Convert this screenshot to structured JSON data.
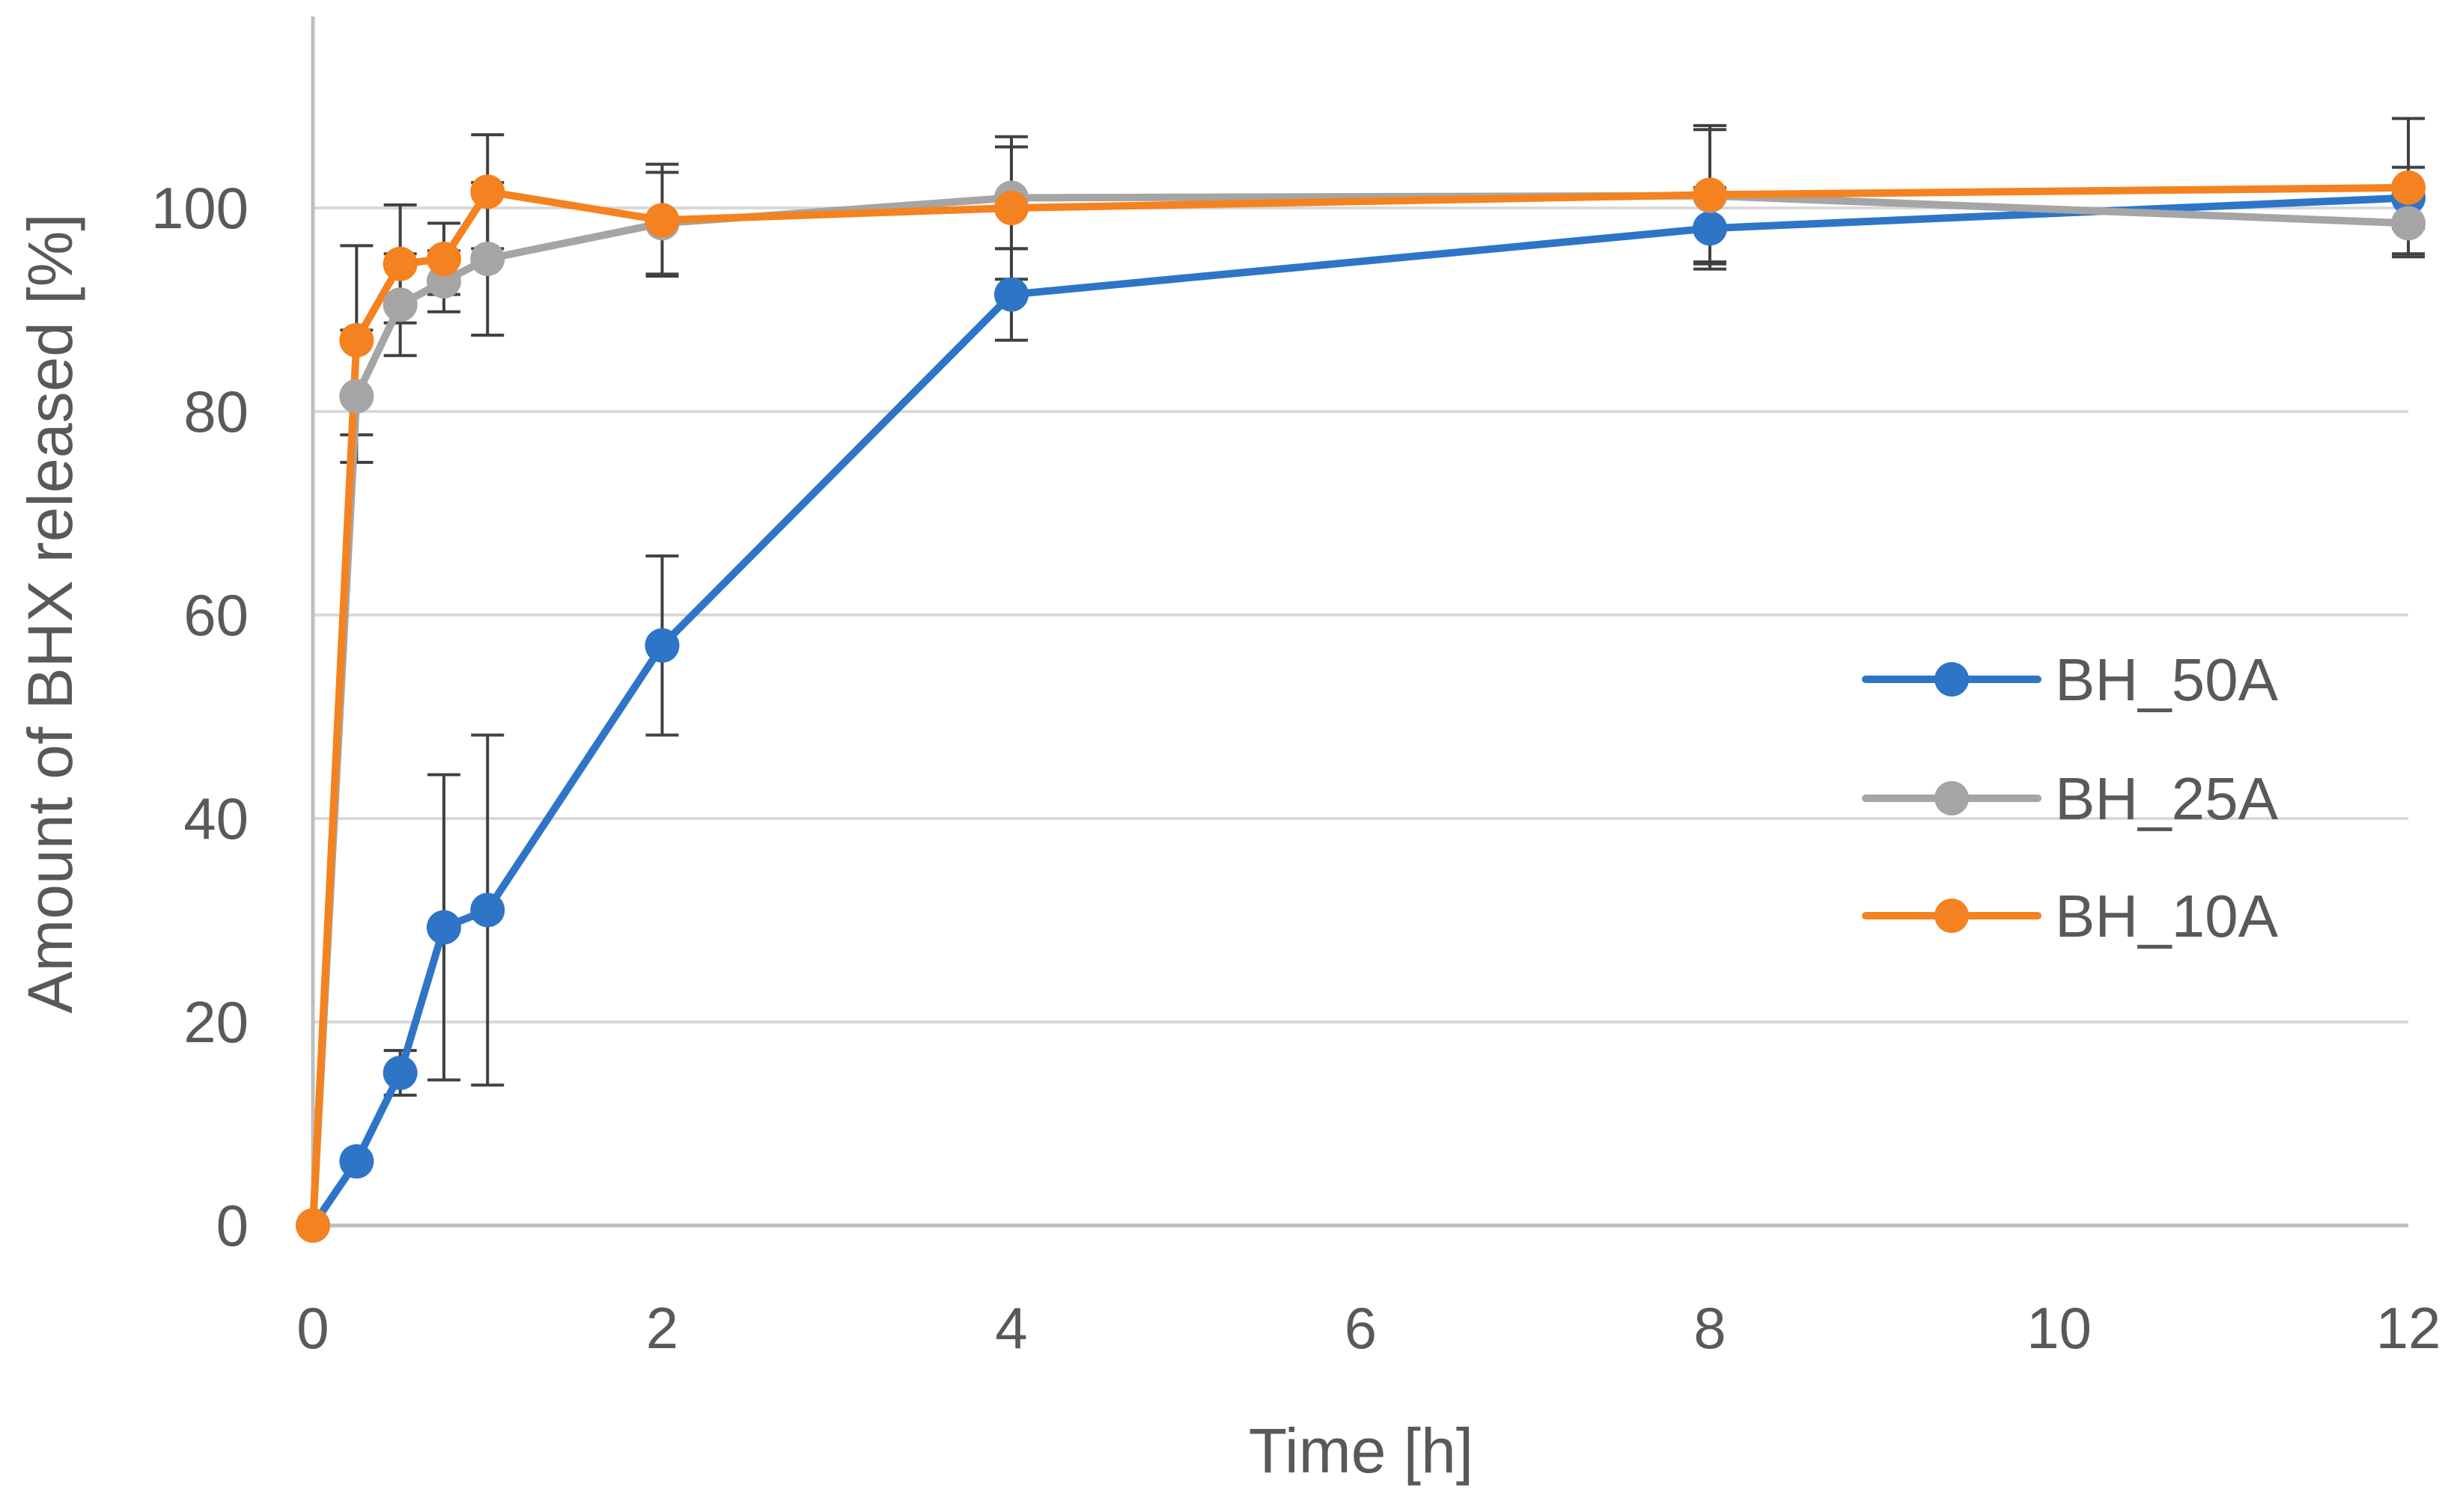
{
  "chart_data": {
    "type": "line",
    "title": "",
    "xlabel": "Time [h]",
    "ylabel": "Amount of BHX released [%]",
    "xlim": [
      0,
      12
    ],
    "ylim": [
      0,
      120
    ],
    "xticks": [
      0,
      2,
      4,
      6,
      8,
      10,
      12
    ],
    "yticks": [
      0,
      20,
      40,
      60,
      80,
      100
    ],
    "grid": "horizontal",
    "legend_position": "right",
    "x": [
      0,
      0.25,
      0.5,
      0.75,
      1,
      2,
      4,
      8,
      12
    ],
    "series": [
      {
        "name": "BH_50A",
        "color": "#2E75C8",
        "values": [
          0,
          6.3,
          15,
          29.3,
          31,
          57,
          91.5,
          98,
          101
        ],
        "errors": [
          0,
          0,
          2.2,
          15,
          17.2,
          8.8,
          4.5,
          4,
          3
        ]
      },
      {
        "name": "BH_25A",
        "color": "#A5A5A5",
        "values": [
          0,
          81.5,
          90.5,
          92.8,
          95,
          98.5,
          101,
          101.2,
          98.5
        ],
        "errors": [
          0,
          6.5,
          5,
          3,
          7.5,
          5,
          5,
          6.5,
          3
        ]
      },
      {
        "name": "BH_10A",
        "color": "#F58220",
        "values": [
          0,
          87,
          94.5,
          95,
          101.6,
          98.8,
          100,
          101.3,
          102
        ],
        "errors": [
          0,
          9.3,
          5.8,
          3.5,
          5.6,
          5.5,
          7,
          6.8,
          6.8
        ]
      }
    ]
  }
}
